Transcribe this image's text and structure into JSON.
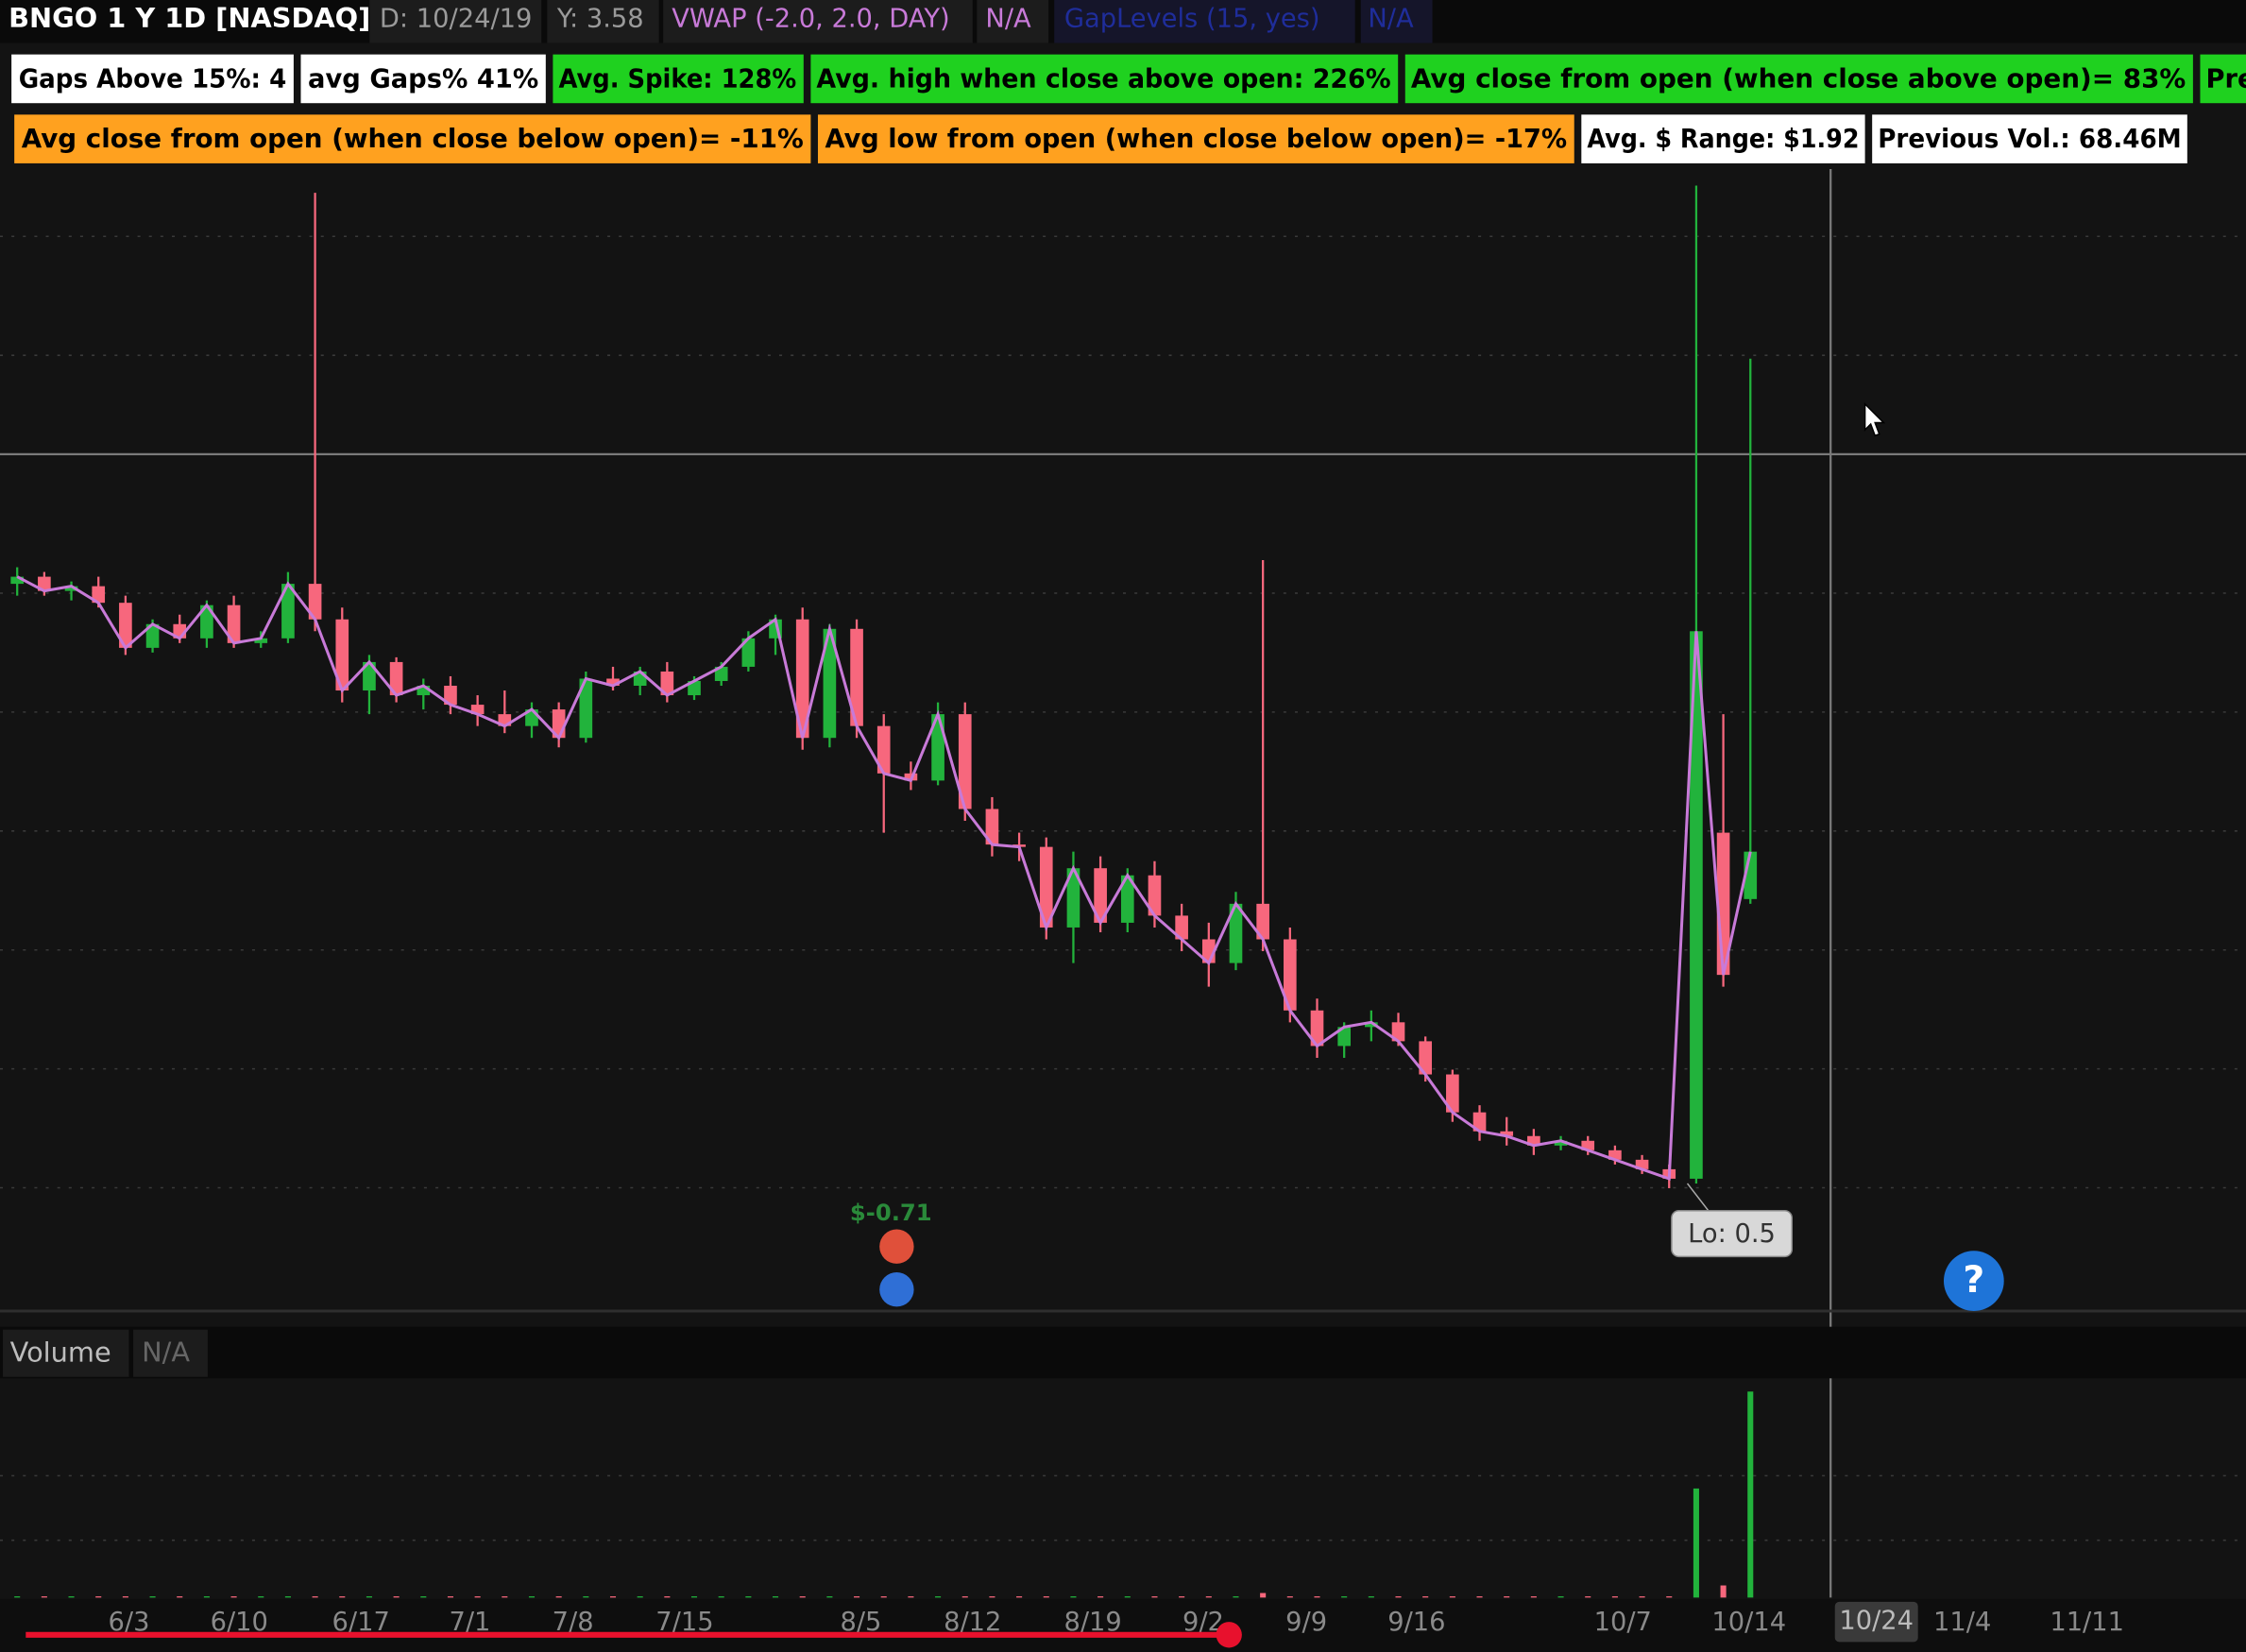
{
  "header": {
    "symbol": "BNGO 1 Y 1D [NASDAQ]",
    "date": "D: 10/24/19",
    "y": "Y: 3.58",
    "study": "VWAP (-2.0, 2.0, DAY)",
    "study_value": "N/A",
    "study2": "GapLevels (15, yes)",
    "study2_value": "N/A"
  },
  "labels": {
    "row1": [
      "Gaps Above 15%: 4",
      "avg Gaps%  41%",
      "Avg. Spike: 128%",
      "Avg. high when close above open: 226%",
      "Avg close from open (when close above open)=  83%",
      "Pre"
    ],
    "row2": [
      "Avg close from open (when close below open)=  -11%",
      "Avg low from open (when close below open)= -17%",
      "Avg. $ Range: $1.92",
      "Previous Vol.: 68.46M"
    ]
  },
  "chart_data": {
    "type": "candlestick",
    "open": [
      3.05,
      3.08,
      3.02,
      3.04,
      2.97,
      2.78,
      2.88,
      2.82,
      2.96,
      2.8,
      2.82,
      3.05,
      2.9,
      2.6,
      2.72,
      2.58,
      2.62,
      2.54,
      2.5,
      2.45,
      2.52,
      2.4,
      2.65,
      2.62,
      2.68,
      2.58,
      2.64,
      2.7,
      2.82,
      2.9,
      2.4,
      2.86,
      2.45,
      2.25,
      2.22,
      2.5,
      2.1,
      1.95,
      1.94,
      1.6,
      1.85,
      1.62,
      1.82,
      1.65,
      1.55,
      1.45,
      1.7,
      1.55,
      1.25,
      1.1,
      1.18,
      1.2,
      1.12,
      0.98,
      0.82,
      0.74,
      0.72,
      0.68,
      0.7,
      0.66,
      0.62,
      0.58,
      0.54,
      2.0,
      1.72
    ],
    "high": [
      3.12,
      3.1,
      3.06,
      3.08,
      3.0,
      2.9,
      2.92,
      2.98,
      3.0,
      2.85,
      3.1,
      4.7,
      2.95,
      2.75,
      2.74,
      2.65,
      2.66,
      2.58,
      2.6,
      2.55,
      2.55,
      2.68,
      2.7,
      2.7,
      2.72,
      2.66,
      2.72,
      2.85,
      2.92,
      2.95,
      2.88,
      2.9,
      2.5,
      2.3,
      2.55,
      2.55,
      2.15,
      2.0,
      1.98,
      1.92,
      1.9,
      1.85,
      1.88,
      1.7,
      1.62,
      1.75,
      3.15,
      1.6,
      1.3,
      1.2,
      1.25,
      1.24,
      1.14,
      1.0,
      0.85,
      0.8,
      0.75,
      0.72,
      0.72,
      0.68,
      0.64,
      0.6,
      4.73,
      2.5,
      4.0
    ],
    "low": [
      3.0,
      3.0,
      2.98,
      2.95,
      2.75,
      2.76,
      2.8,
      2.78,
      2.78,
      2.78,
      2.8,
      2.85,
      2.55,
      2.5,
      2.55,
      2.52,
      2.5,
      2.45,
      2.42,
      2.4,
      2.36,
      2.38,
      2.6,
      2.58,
      2.55,
      2.56,
      2.62,
      2.68,
      2.75,
      2.35,
      2.36,
      2.4,
      2.0,
      2.18,
      2.2,
      2.05,
      1.9,
      1.88,
      1.55,
      1.45,
      1.58,
      1.58,
      1.6,
      1.5,
      1.35,
      1.42,
      1.5,
      1.2,
      1.05,
      1.05,
      1.12,
      1.1,
      0.95,
      0.78,
      0.7,
      0.68,
      0.64,
      0.66,
      0.64,
      0.6,
      0.56,
      0.5,
      0.52,
      1.35,
      1.7
    ],
    "close": [
      3.08,
      3.02,
      3.04,
      2.97,
      2.78,
      2.88,
      2.82,
      2.96,
      2.8,
      2.82,
      3.05,
      2.9,
      2.6,
      2.72,
      2.58,
      2.62,
      2.54,
      2.5,
      2.45,
      2.52,
      2.4,
      2.65,
      2.62,
      2.68,
      2.58,
      2.64,
      2.7,
      2.82,
      2.9,
      2.4,
      2.86,
      2.45,
      2.25,
      2.22,
      2.5,
      2.1,
      1.95,
      1.94,
      1.6,
      1.85,
      1.62,
      1.82,
      1.65,
      1.55,
      1.45,
      1.7,
      1.55,
      1.25,
      1.1,
      1.18,
      1.2,
      1.12,
      0.98,
      0.82,
      0.74,
      0.72,
      0.68,
      0.7,
      0.66,
      0.62,
      0.58,
      0.54,
      2.85,
      1.4,
      1.92
    ],
    "ylim": [
      0,
      4.8
    ],
    "colors": {
      "up": "#22b33c",
      "down": "#f7677d",
      "vwap": "#c87ad8"
    },
    "volume": [
      0.4,
      0.4,
      0.4,
      0.4,
      0.4,
      0.4,
      0.4,
      0.4,
      0.4,
      0.4,
      0.4,
      0.4,
      0.4,
      0.4,
      0.4,
      0.4,
      0.4,
      0.4,
      0.4,
      0.4,
      0.4,
      0.4,
      0.4,
      0.4,
      0.4,
      0.4,
      0.4,
      0.4,
      0.4,
      0.4,
      0.4,
      0.4,
      0.4,
      0.4,
      0.4,
      0.4,
      0.4,
      0.4,
      0.4,
      0.4,
      0.4,
      0.4,
      0.4,
      0.4,
      0.4,
      0.4,
      1.5,
      0.4,
      0.4,
      0.4,
      0.4,
      0.4,
      0.4,
      0.4,
      0.4,
      0.4,
      0.4,
      0.4,
      0.4,
      0.4,
      0.4,
      0.4,
      36,
      4,
      68
    ],
    "volume_ylim": [
      0,
      70
    ],
    "annotations": {
      "pnl": "$-0.71",
      "low": "Lo: 0.5"
    },
    "x_labels": [
      "6/3",
      "6/10",
      "6/17",
      "7/1",
      "7/8",
      "7/15",
      "8/5",
      "8/12",
      "8/19",
      "9/2",
      "9/9",
      "9/16",
      "10/7",
      "10/14",
      "10/24",
      "11/4",
      "11/11"
    ]
  },
  "volume_panel": {
    "title": "Volume",
    "value": "N/A"
  },
  "help": "?"
}
